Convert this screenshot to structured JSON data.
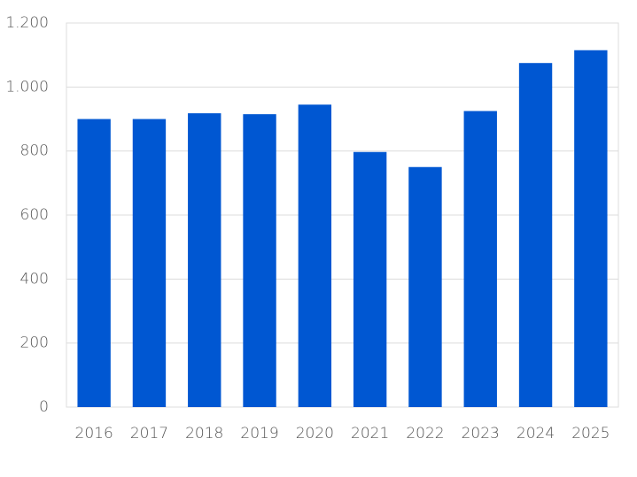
{
  "chart_data": {
    "type": "bar",
    "categories": [
      "2016",
      "2017",
      "2018",
      "2019",
      "2020",
      "2021",
      "2022",
      "2023",
      "2024",
      "2025"
    ],
    "values": [
      900,
      900,
      918,
      915,
      945,
      797,
      750,
      925,
      1075,
      1115
    ],
    "color": "#0057d2",
    "ylim": [
      0,
      1200
    ],
    "yticks": [
      0,
      200,
      400,
      600,
      800,
      {
        "value": 1000,
        "label": "1.000"
      },
      {
        "value": 1200,
        "label": "1.200"
      }
    ],
    "grid": true
  }
}
